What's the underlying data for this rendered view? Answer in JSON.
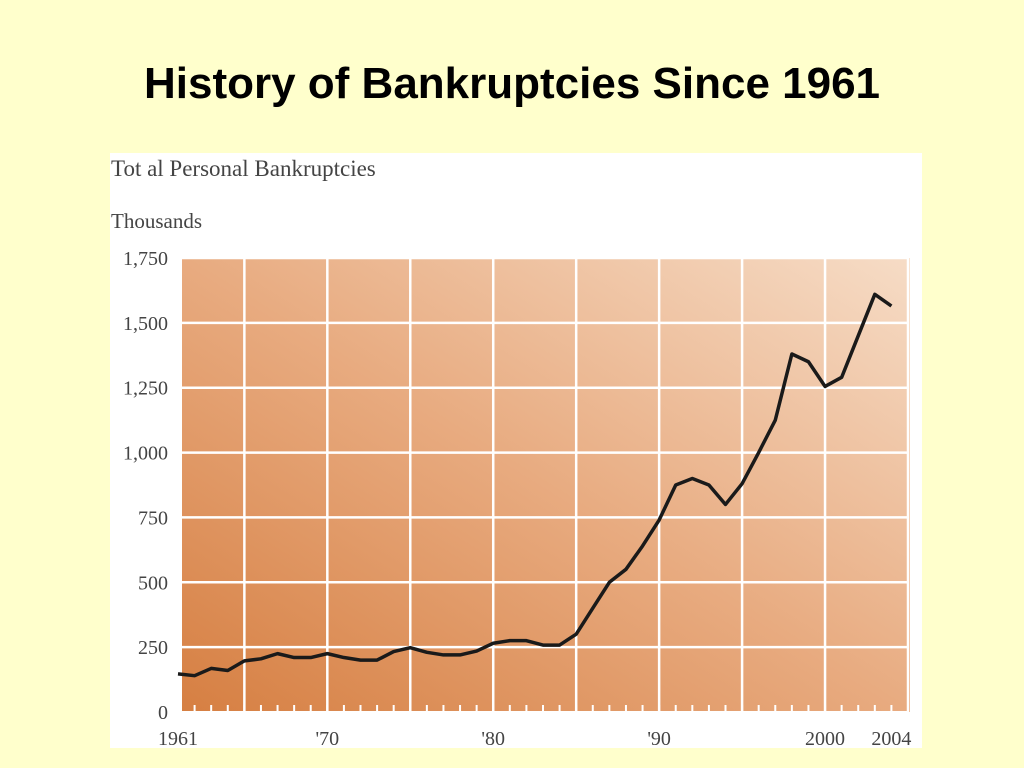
{
  "chart_data": {
    "type": "line",
    "title": "History of Bankruptcies Since 1961",
    "subtitle": "Tot al Personal Bankruptcies",
    "y_label": "Thousands",
    "x": [
      1961,
      1962,
      1963,
      1964,
      1965,
      1966,
      1967,
      1968,
      1969,
      1970,
      1971,
      1972,
      1973,
      1974,
      1975,
      1976,
      1977,
      1978,
      1979,
      1980,
      1981,
      1982,
      1983,
      1984,
      1985,
      1986,
      1987,
      1988,
      1989,
      1990,
      1991,
      1992,
      1993,
      1994,
      1995,
      1996,
      1997,
      1998,
      1999,
      2000,
      2001,
      2002,
      2003,
      2004
    ],
    "series": [
      {
        "name": "Total Personal Bankruptcies",
        "color": "#1a1a1a",
        "values": [
          147,
          140,
          168,
          160,
          197,
          205,
          225,
          210,
          210,
          225,
          210,
          200,
          200,
          233,
          248,
          230,
          220,
          220,
          235,
          265,
          275,
          275,
          258,
          258,
          300,
          400,
          500,
          550,
          640,
          740,
          875,
          900,
          875,
          800,
          880,
          1000,
          1125,
          1380,
          1350,
          1255,
          1290,
          1450,
          1610,
          1565
        ]
      }
    ],
    "xlim": [
      1961,
      2005
    ],
    "xticks": [
      1961,
      {
        "value": 1970,
        "label": "'70"
      },
      {
        "value": 1980,
        "label": "'80"
      },
      {
        "value": 1990,
        "label": "'90"
      },
      2000,
      2004
    ],
    "xgrid": [
      1965,
      1970,
      1975,
      1980,
      1985,
      1990,
      1995,
      2000,
      2005
    ],
    "ylim": [
      0,
      1750
    ],
    "yticks": [
      0,
      250,
      500,
      750,
      {
        "value": 1000,
        "label": "1,000"
      },
      {
        "value": 1250,
        "label": "1,250"
      },
      {
        "value": 1500,
        "label": "1,500"
      },
      {
        "value": 1750,
        "label": "1,750"
      }
    ],
    "grid": true
  }
}
